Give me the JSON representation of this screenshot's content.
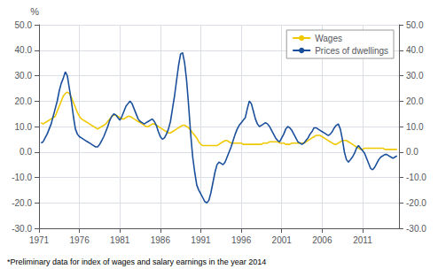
{
  "chart_data": {
    "type": "line",
    "ylabel": "%",
    "annotations": [
      "*Preliminary data for index of wages and salary earnings in the year 2014"
    ],
    "grid": true,
    "legend": "upper right",
    "xlim": [
      1971.0,
      2015.5
    ],
    "xticks": [
      1971,
      1976,
      1981,
      1986,
      1991,
      1996,
      2001,
      2006,
      2011
    ],
    "ylim": [
      -30.0,
      50.0
    ],
    "yticks": [
      {
        "value": -30,
        "label": "-30.0"
      },
      {
        "value": -20,
        "label": "-20.0"
      },
      {
        "value": -10,
        "label": "-10.0"
      },
      {
        "value": 0,
        "label": "0.0"
      },
      {
        "value": 10,
        "label": "10.0"
      },
      {
        "value": 20,
        "label": "20.0"
      },
      {
        "value": 30,
        "label": "30.0"
      },
      {
        "value": 40,
        "label": "40.0"
      },
      {
        "value": 50,
        "label": "50.0"
      }
    ],
    "y2lim": [
      -30.0,
      50.0
    ],
    "y2ticks": [
      {
        "value": -30,
        "label": "-30.0"
      },
      {
        "value": -20,
        "label": "-20.0"
      },
      {
        "value": -10,
        "label": "-10.0"
      },
      {
        "value": 0,
        "label": "0.0"
      },
      {
        "value": 10,
        "label": "10.0"
      },
      {
        "value": 20,
        "label": "20.0"
      },
      {
        "value": 30,
        "label": "30.0"
      },
      {
        "value": 40,
        "label": "40.0"
      },
      {
        "value": 50,
        "label": "50.0"
      }
    ],
    "x": [
      1971.25,
      1971.5,
      1971.75,
      1972.0,
      1972.25,
      1972.5,
      1972.75,
      1973.0,
      1973.25,
      1973.5,
      1973.75,
      1974.0,
      1974.25,
      1974.5,
      1974.75,
      1975.0,
      1975.25,
      1975.5,
      1975.75,
      1976.0,
      1976.25,
      1976.5,
      1976.75,
      1977.0,
      1977.25,
      1977.5,
      1977.75,
      1978.0,
      1978.25,
      1978.5,
      1978.75,
      1979.0,
      1979.25,
      1979.5,
      1979.75,
      1980.0,
      1980.25,
      1980.5,
      1980.75,
      1981.0,
      1981.25,
      1981.5,
      1981.75,
      1982.0,
      1982.25,
      1982.5,
      1982.75,
      1983.0,
      1983.25,
      1983.5,
      1983.75,
      1984.0,
      1984.25,
      1984.5,
      1984.75,
      1985.0,
      1985.25,
      1985.5,
      1985.75,
      1986.0,
      1986.25,
      1986.5,
      1986.75,
      1987.0,
      1987.25,
      1987.5,
      1987.75,
      1988.0,
      1988.25,
      1988.5,
      1988.75,
      1989.0,
      1989.25,
      1989.5,
      1989.75,
      1990.0,
      1990.25,
      1990.5,
      1990.75,
      1991.0,
      1991.25,
      1991.5,
      1991.75,
      1992.0,
      1992.25,
      1992.5,
      1992.75,
      1993.0,
      1993.25,
      1993.5,
      1993.75,
      1994.0,
      1994.25,
      1994.5,
      1994.75,
      1995.0,
      1995.25,
      1995.5,
      1995.75,
      1996.0,
      1996.25,
      1996.5,
      1996.75,
      1997.0,
      1997.25,
      1997.5,
      1997.75,
      1998.0,
      1998.25,
      1998.5,
      1998.75,
      1999.0,
      1999.25,
      1999.5,
      1999.75,
      2000.0,
      2000.25,
      2000.5,
      2000.75,
      2001.0,
      2001.25,
      2001.5,
      2001.75,
      2002.0,
      2002.25,
      2002.5,
      2002.75,
      2003.0,
      2003.25,
      2003.5,
      2003.75,
      2004.0,
      2004.25,
      2004.5,
      2004.75,
      2005.0,
      2005.25,
      2005.5,
      2005.75,
      2006.0,
      2006.25,
      2006.5,
      2006.75,
      2007.0,
      2007.25,
      2007.5,
      2007.75,
      2008.0,
      2008.25,
      2008.5,
      2008.75,
      2009.0,
      2009.25,
      2009.5,
      2009.75,
      2010.0,
      2010.25,
      2010.5,
      2010.75,
      2011.0,
      2011.25,
      2011.5,
      2011.75,
      2012.0,
      2012.25,
      2012.5,
      2012.75,
      2013.0,
      2013.25,
      2013.5,
      2013.75,
      2014.0,
      2014.25,
      2014.5,
      2014.75,
      2015.0,
      2015.25
    ],
    "series": [
      {
        "name": "Wages",
        "color": "#f0c800",
        "values": [
          11.5,
          11.0,
          11.5,
          12.0,
          12.5,
          13.0,
          13.5,
          14.0,
          16.0,
          18.0,
          20.0,
          22.0,
          23.0,
          23.5,
          23.0,
          21.5,
          19.5,
          17.5,
          15.5,
          14.0,
          13.0,
          12.5,
          12.0,
          11.5,
          11.0,
          10.5,
          10.0,
          9.5,
          9.0,
          9.5,
          10.0,
          10.5,
          11.0,
          12.0,
          13.0,
          14.0,
          14.5,
          14.5,
          14.0,
          13.5,
          13.0,
          13.0,
          13.5,
          14.0,
          14.0,
          13.5,
          13.0,
          12.5,
          12.0,
          11.5,
          11.0,
          10.5,
          10.0,
          10.0,
          10.5,
          11.0,
          11.0,
          10.5,
          10.0,
          9.5,
          9.0,
          8.5,
          8.0,
          7.5,
          7.5,
          8.0,
          8.5,
          9.0,
          9.5,
          10.0,
          10.5,
          10.5,
          10.0,
          9.5,
          8.5,
          7.5,
          6.5,
          5.5,
          4.0,
          3.0,
          2.5,
          2.5,
          2.5,
          2.5,
          2.5,
          2.5,
          2.5,
          2.5,
          3.0,
          3.5,
          4.0,
          4.5,
          4.5,
          4.0,
          3.5,
          3.5,
          3.5,
          3.5,
          3.5,
          3.5,
          3.0,
          3.0,
          3.0,
          3.0,
          3.0,
          3.0,
          3.0,
          3.0,
          3.0,
          3.0,
          3.5,
          3.5,
          3.5,
          4.0,
          4.0,
          4.0,
          4.0,
          4.0,
          3.5,
          3.5,
          3.5,
          3.0,
          3.0,
          3.0,
          3.5,
          3.5,
          3.5,
          3.5,
          3.5,
          3.5,
          3.5,
          4.0,
          4.5,
          5.0,
          5.5,
          6.0,
          6.5,
          6.5,
          6.5,
          6.0,
          5.5,
          5.0,
          4.5,
          4.0,
          3.5,
          3.0,
          3.0,
          3.5,
          4.0,
          4.5,
          4.5,
          4.5,
          4.0,
          3.5,
          3.0,
          2.5,
          2.0,
          1.5,
          1.0,
          1.0,
          1.5,
          1.5,
          1.5,
          1.5,
          1.5,
          1.5,
          1.5,
          1.5,
          1.5,
          1.5,
          1.0,
          1.0,
          1.0,
          1.0,
          1.0,
          1.0,
          1.0
        ]
      },
      {
        "name": "Prices of dwellings",
        "color": "#1a4f9c",
        "values": [
          3.5,
          4.0,
          5.5,
          7.0,
          9.0,
          11.0,
          14.0,
          17.0,
          20.0,
          24.0,
          27.0,
          29.0,
          31.5,
          30.0,
          25.0,
          20.0,
          14.0,
          9.0,
          7.0,
          6.0,
          5.5,
          5.0,
          4.5,
          4.0,
          3.5,
          3.0,
          2.5,
          2.0,
          2.0,
          3.0,
          4.5,
          6.0,
          8.0,
          10.0,
          12.5,
          14.0,
          15.0,
          14.5,
          13.5,
          12.5,
          14.0,
          16.0,
          18.0,
          19.0,
          20.0,
          19.0,
          17.0,
          15.0,
          13.0,
          12.0,
          11.5,
          11.0,
          11.5,
          12.0,
          12.5,
          13.0,
          12.0,
          10.5,
          8.0,
          6.0,
          5.0,
          5.5,
          7.0,
          9.0,
          12.0,
          17.0,
          22.0,
          28.0,
          34.0,
          38.5,
          39.0,
          35.0,
          28.0,
          18.0,
          7.0,
          -2.0,
          -8.0,
          -13.0,
          -15.0,
          -16.5,
          -18.0,
          -19.5,
          -20.0,
          -19.0,
          -16.0,
          -12.0,
          -8.0,
          -5.0,
          -4.0,
          -4.5,
          -5.0,
          -4.0,
          -2.0,
          0.0,
          2.0,
          4.5,
          7.0,
          9.0,
          10.5,
          11.5,
          12.5,
          13.5,
          17.0,
          20.0,
          19.0,
          16.0,
          13.0,
          11.0,
          10.0,
          10.5,
          11.0,
          11.5,
          11.0,
          10.0,
          8.5,
          7.0,
          5.5,
          4.5,
          4.0,
          5.5,
          7.0,
          9.0,
          10.0,
          9.5,
          8.5,
          7.0,
          5.5,
          4.0,
          3.5,
          3.0,
          3.5,
          4.5,
          5.5,
          7.0,
          8.0,
          9.5,
          9.5,
          9.0,
          8.5,
          8.0,
          7.5,
          7.0,
          6.5,
          7.0,
          8.0,
          9.5,
          10.5,
          11.0,
          9.0,
          5.0,
          0.0,
          -3.0,
          -4.0,
          -3.0,
          -2.0,
          -0.5,
          1.5,
          2.5,
          1.5,
          0.5,
          -0.5,
          -2.5,
          -4.5,
          -6.5,
          -7.0,
          -6.0,
          -4.5,
          -3.0,
          -2.0,
          -1.5,
          -1.0,
          -1.0,
          -1.5,
          -2.0,
          -2.5,
          -2.0,
          -1.5
        ]
      }
    ]
  }
}
